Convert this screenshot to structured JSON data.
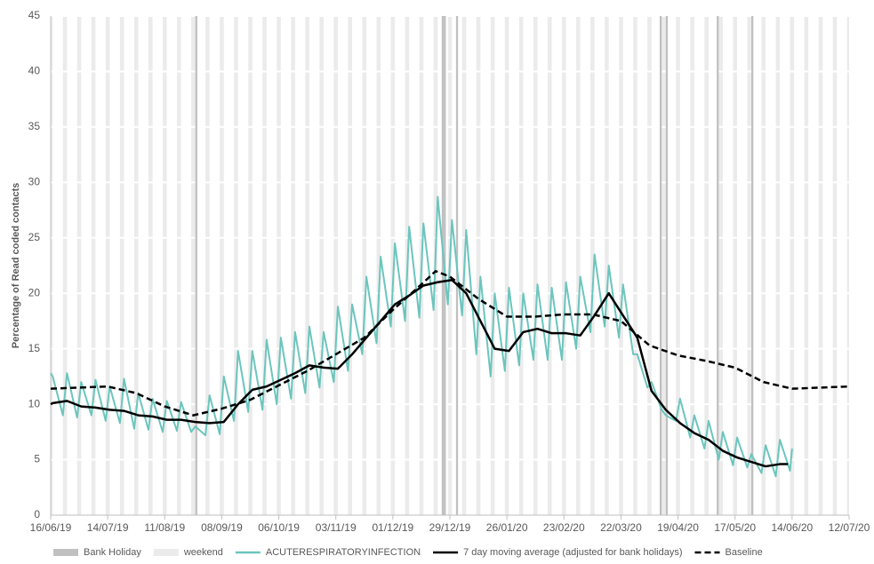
{
  "chart_data": {
    "type": "line",
    "y_label": "Percentage of Read coded contacts",
    "xlim": [
      "16/06/19",
      "12/07/20"
    ],
    "xticks": [
      "16/06/19",
      "14/07/19",
      "11/08/19",
      "08/09/19",
      "06/10/19",
      "03/11/19",
      "01/12/19",
      "29/12/19",
      "26/01/20",
      "23/02/20",
      "22/03/20",
      "19/04/20",
      "17/05/20",
      "14/06/20",
      "12/07/20"
    ],
    "ylim": [
      0,
      45
    ],
    "yticks": [
      0,
      5,
      10,
      15,
      20,
      25,
      30,
      35,
      40,
      45
    ],
    "grid": true,
    "bank_holiday": {
      "name": "Bank Holiday",
      "color": "#c0c0c0",
      "dates": [
        "26/08/19",
        "25/12/19",
        "26/12/19",
        "01/01/20",
        "10/04/20",
        "13/04/20",
        "08/05/20",
        "25/05/20"
      ]
    },
    "weekend": {
      "name": "weekend",
      "color": "#ebebeb"
    },
    "series": [
      {
        "name": "ACUTERESPIRATORYINFECTION",
        "color": "#6cc5bd",
        "dashed": false,
        "x": [
          "16/06/19",
          "17/06/19",
          "22/06/19",
          "24/06/19",
          "29/06/19",
          "01/07/19",
          "06/07/19",
          "08/07/19",
          "13/07/19",
          "15/07/19",
          "20/07/19",
          "22/07/19",
          "27/07/19",
          "29/07/19",
          "03/08/19",
          "05/08/19",
          "10/08/19",
          "12/08/19",
          "17/08/19",
          "19/08/19",
          "24/08/19",
          "26/08/19",
          "31/08/19",
          "02/09/19",
          "07/09/19",
          "09/09/19",
          "14/09/19",
          "16/09/19",
          "21/09/19",
          "23/09/19",
          "28/09/19",
          "30/09/19",
          "05/10/19",
          "07/10/19",
          "12/10/19",
          "14/10/19",
          "19/10/19",
          "21/10/19",
          "26/10/19",
          "28/10/19",
          "02/11/19",
          "04/11/19",
          "09/11/19",
          "11/11/19",
          "16/11/19",
          "18/11/19",
          "23/11/19",
          "25/11/19",
          "30/11/19",
          "02/12/19",
          "07/12/19",
          "09/12/19",
          "14/12/19",
          "16/12/19",
          "21/12/19",
          "23/12/19",
          "28/12/19",
          "30/12/19",
          "04/01/20",
          "06/01/20",
          "11/01/20",
          "13/01/20",
          "18/01/20",
          "20/01/20",
          "25/01/20",
          "27/01/20",
          "01/02/20",
          "03/02/20",
          "08/02/20",
          "10/02/20",
          "15/02/20",
          "17/02/20",
          "22/02/20",
          "24/02/20",
          "29/02/20",
          "02/03/20",
          "07/03/20",
          "09/03/20",
          "14/03/20",
          "16/03/20",
          "21/03/20",
          "23/03/20",
          "28/03/20",
          "30/03/20",
          "04/04/20",
          "06/04/20",
          "11/04/20",
          "13/04/20",
          "18/04/20",
          "20/04/20",
          "25/04/20",
          "27/04/20",
          "02/05/20",
          "04/05/20",
          "09/05/20",
          "11/05/20",
          "16/05/20",
          "18/05/20",
          "23/05/20",
          "25/05/20",
          "30/05/20",
          "01/06/20",
          "06/06/20",
          "08/06/20",
          "13/06/20",
          "14/06/20"
        ],
        "values": [
          12.8,
          12.5,
          9.0,
          12.8,
          8.8,
          12.0,
          9.0,
          12.2,
          8.5,
          11.6,
          8.3,
          12.3,
          7.8,
          11.0,
          7.7,
          10.5,
          7.5,
          10.3,
          7.6,
          10.2,
          7.5,
          8.0,
          7.2,
          10.8,
          7.3,
          12.5,
          8.5,
          14.8,
          9.3,
          14.8,
          9.5,
          15.8,
          10.0,
          16.0,
          10.5,
          16.5,
          11.0,
          17.0,
          11.5,
          16.5,
          12.0,
          18.8,
          13.0,
          19.0,
          14.5,
          21.5,
          15.5,
          23.3,
          17.0,
          24.5,
          17.5,
          26.0,
          17.8,
          26.3,
          18.5,
          28.7,
          19.0,
          26.6,
          18.0,
          25.7,
          14.5,
          21.5,
          12.5,
          20.0,
          13.0,
          20.5,
          13.5,
          20.0,
          14.0,
          20.8,
          14.0,
          20.5,
          14.0,
          21.0,
          15.0,
          21.5,
          16.5,
          23.5,
          17.0,
          22.5,
          16.0,
          20.8,
          14.5,
          14.5,
          11.5,
          12.0,
          9.5,
          9.0,
          8.5,
          10.5,
          7.0,
          9.0,
          6.0,
          8.5,
          5.0,
          7.5,
          4.5,
          7.0,
          4.3,
          5.5,
          3.8,
          6.3,
          3.5,
          6.8,
          4.0,
          6.0
        ]
      },
      {
        "name": "7 day moving average (adjusted for bank holidays)",
        "color": "#000000",
        "dashed": false,
        "x": [
          "16/06/19",
          "17/06/19",
          "24/06/19",
          "01/07/19",
          "08/07/19",
          "15/07/19",
          "22/07/19",
          "29/07/19",
          "05/08/19",
          "12/08/19",
          "19/08/19",
          "26/08/19",
          "02/09/19",
          "09/09/19",
          "16/09/19",
          "23/09/19",
          "30/09/19",
          "07/10/19",
          "14/10/19",
          "21/10/19",
          "28/10/19",
          "04/11/19",
          "11/11/19",
          "18/11/19",
          "25/11/19",
          "02/12/19",
          "09/12/19",
          "16/12/19",
          "23/12/19",
          "30/12/19",
          "06/01/20",
          "13/01/20",
          "20/01/20",
          "27/01/20",
          "03/02/20",
          "10/02/20",
          "17/02/20",
          "24/02/20",
          "02/03/20",
          "09/03/20",
          "16/03/20",
          "23/03/20",
          "30/03/20",
          "06/04/20",
          "13/04/20",
          "20/04/20",
          "27/04/20",
          "04/05/20",
          "11/05/20",
          "18/05/20",
          "25/05/20",
          "01/06/20",
          "08/06/20",
          "12/06/20"
        ],
        "values": [
          10.0,
          10.1,
          10.3,
          9.8,
          9.7,
          9.5,
          9.4,
          9.0,
          8.9,
          8.6,
          8.6,
          8.4,
          8.3,
          8.4,
          10.0,
          11.3,
          11.6,
          12.2,
          12.8,
          13.5,
          13.3,
          13.2,
          14.5,
          16.0,
          17.5,
          19.0,
          19.8,
          20.7,
          21.0,
          21.2,
          20.0,
          17.5,
          15.0,
          14.8,
          16.5,
          16.8,
          16.4,
          16.4,
          16.2,
          18.0,
          20.0,
          18.0,
          16.0,
          11.2,
          9.5,
          8.3,
          7.4,
          6.8,
          5.8,
          5.2,
          4.8,
          4.4,
          4.6,
          4.6
        ]
      },
      {
        "name": "Baseline",
        "color": "#000000",
        "dashed": true,
        "x": [
          "16/06/19",
          "30/06/19",
          "14/07/19",
          "28/07/19",
          "11/08/19",
          "25/08/19",
          "08/09/19",
          "22/09/19",
          "06/10/19",
          "20/10/19",
          "03/11/19",
          "17/11/19",
          "01/12/19",
          "15/12/19",
          "22/12/19",
          "29/12/19",
          "12/01/20",
          "26/01/20",
          "09/02/20",
          "23/02/20",
          "08/03/20",
          "22/03/20",
          "05/04/20",
          "19/04/20",
          "03/05/20",
          "17/05/20",
          "31/05/20",
          "14/06/20",
          "28/06/20",
          "12/07/20"
        ],
        "values": [
          11.4,
          11.5,
          11.6,
          11.0,
          9.8,
          9.0,
          9.6,
          10.4,
          11.7,
          13.0,
          14.5,
          16.0,
          18.5,
          20.8,
          22.0,
          21.5,
          19.5,
          17.9,
          17.9,
          18.1,
          18.1,
          17.5,
          15.3,
          14.4,
          13.9,
          13.3,
          12.0,
          11.4,
          11.5,
          11.6
        ]
      }
    ]
  }
}
